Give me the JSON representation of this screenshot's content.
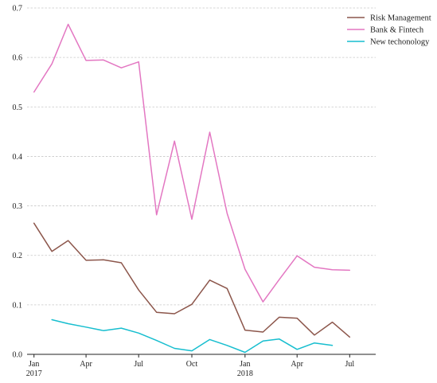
{
  "chart_data": {
    "type": "line",
    "title": "",
    "xlabel": "",
    "ylabel": "",
    "ylim": [
      0,
      0.7
    ],
    "xlim": [
      "2016-12-20",
      "2018-08-15"
    ],
    "grid": true,
    "legend_position": "top-right",
    "y_ticks": [
      "0.0",
      "0.1",
      "0.2",
      "0.3",
      "0.4",
      "0.5",
      "0.6",
      "0.7"
    ],
    "x_ticks": [
      {
        "date": "2017-01-01",
        "label": "Jan",
        "sublabel": "2017"
      },
      {
        "date": "2017-04-01",
        "label": "Apr",
        "sublabel": ""
      },
      {
        "date": "2017-07-01",
        "label": "Jul",
        "sublabel": ""
      },
      {
        "date": "2017-10-01",
        "label": "Oct",
        "sublabel": ""
      },
      {
        "date": "2018-01-01",
        "label": "Jan",
        "sublabel": "2018"
      },
      {
        "date": "2018-04-01",
        "label": "Apr",
        "sublabel": ""
      },
      {
        "date": "2018-07-01",
        "label": "Jul",
        "sublabel": ""
      }
    ],
    "series": [
      {
        "name": "Risk Management",
        "color": "#8c564b",
        "x": [
          "2017-01-01",
          "2017-02-01",
          "2017-03-01",
          "2017-04-01",
          "2017-05-01",
          "2017-06-01",
          "2017-07-01",
          "2017-08-01",
          "2017-09-01",
          "2017-10-01",
          "2017-11-01",
          "2017-12-01",
          "2018-01-01",
          "2018-02-01",
          "2018-03-01",
          "2018-04-01",
          "2018-05-01",
          "2018-06-01",
          "2018-07-01"
        ],
        "y": [
          0.265,
          0.208,
          0.23,
          0.19,
          0.191,
          0.185,
          0.13,
          0.085,
          0.082,
          0.101,
          0.15,
          0.133,
          0.049,
          0.045,
          0.075,
          0.073,
          0.039,
          0.065,
          0.035
        ]
      },
      {
        "name": "Bank & Fintech",
        "color": "#e377c2",
        "x": [
          "2017-01-01",
          "2017-02-01",
          "2017-03-01",
          "2017-04-01",
          "2017-05-01",
          "2017-06-01",
          "2017-07-01",
          "2017-08-01",
          "2017-09-01",
          "2017-10-01",
          "2017-11-01",
          "2017-12-01",
          "2018-01-01",
          "2018-02-01",
          "2018-03-01",
          "2018-04-01",
          "2018-05-01",
          "2018-06-01",
          "2018-07-01"
        ],
        "y": [
          0.53,
          0.587,
          0.667,
          0.594,
          0.595,
          0.579,
          0.591,
          0.282,
          0.431,
          0.273,
          0.449,
          0.285,
          0.172,
          0.106,
          0.151,
          0.199,
          0.176,
          0.171,
          0.17
        ]
      },
      {
        "name": "New techonology",
        "color": "#17becf",
        "x": [
          "2017-02-01",
          "2017-03-01",
          "2017-04-01",
          "2017-05-01",
          "2017-06-01",
          "2017-07-01",
          "2017-08-01",
          "2017-09-01",
          "2017-10-01",
          "2017-11-01",
          "2017-12-01",
          "2018-01-01",
          "2018-02-01",
          "2018-03-01",
          "2018-04-01",
          "2018-05-01",
          "2018-06-01"
        ],
        "y": [
          0.07,
          0.062,
          0.055,
          0.048,
          0.053,
          0.043,
          0.028,
          0.012,
          0.007,
          0.03,
          0.018,
          0.004,
          0.027,
          0.031,
          0.01,
          0.023,
          0.018
        ]
      }
    ]
  }
}
